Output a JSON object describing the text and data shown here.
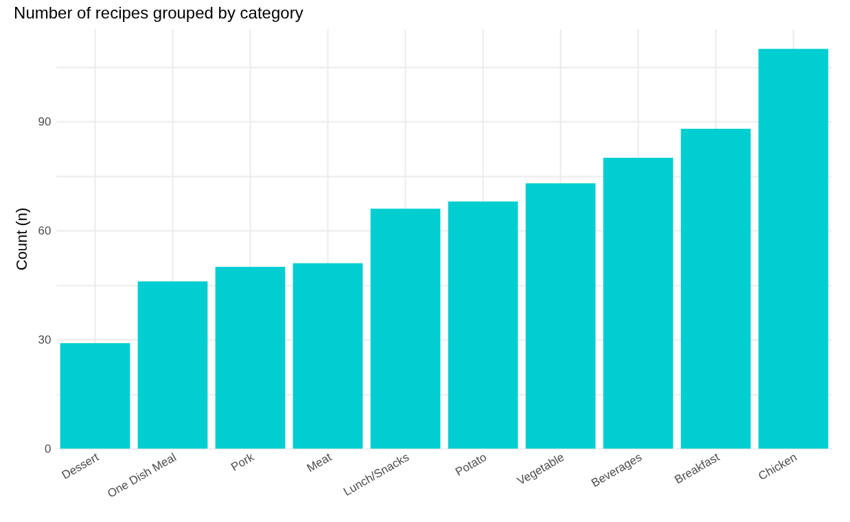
{
  "chart_data": {
    "type": "bar",
    "title": "Number of recipes grouped by category",
    "ylabel": "Count (n)",
    "categories": [
      "Dessert",
      "One Dish Meal",
      "Pork",
      "Meat",
      "Lunch/Snacks",
      "Potato",
      "Vegetable",
      "Beverages",
      "Breakfast",
      "Chicken"
    ],
    "values": [
      29,
      46,
      50,
      51,
      66,
      68,
      73,
      80,
      88,
      110
    ],
    "color": "#00ced1",
    "ylim": [
      0,
      115.5
    ],
    "yticks": [
      0,
      {
        "value": 15,
        "label": null
      },
      30,
      {
        "value": 45,
        "label": null
      },
      60,
      {
        "value": 75,
        "label": null
      },
      90,
      {
        "value": 105,
        "label": null
      }
    ],
    "grid": true
  }
}
